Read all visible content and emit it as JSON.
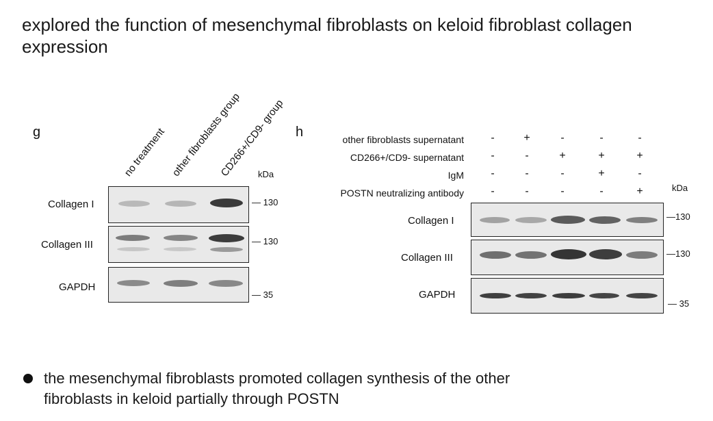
{
  "title": "explored the function of mesenchymal fibroblasts on keloid fibroblast collagen expression",
  "panel_g": {
    "letter": "g",
    "lanes": [
      "no treatment",
      "other fibroblasts group",
      "CD266+/CD9- group"
    ],
    "kda": "kDa",
    "rows": [
      {
        "label": "Collagen I",
        "marker": "130"
      },
      {
        "label": "Collagen III",
        "marker": "130"
      },
      {
        "label": "GAPDH",
        "marker": "35"
      }
    ]
  },
  "panel_h": {
    "letter": "h",
    "conditions": [
      {
        "label": "other fibroblasts supernatant",
        "signs": [
          "-",
          "+",
          "-",
          "-",
          "-"
        ]
      },
      {
        "label": "CD266+/CD9- supernatant",
        "signs": [
          "-",
          "-",
          "+",
          "+",
          "+"
        ]
      },
      {
        "label": "IgM",
        "signs": [
          "-",
          "-",
          "-",
          "+",
          "-"
        ]
      },
      {
        "label": "POSTN neutralizing antibody",
        "signs": [
          "-",
          "-",
          "-",
          "-",
          "+"
        ]
      }
    ],
    "kda": "kDa",
    "rows": [
      {
        "label": "Collagen I",
        "marker": "130"
      },
      {
        "label": "Collagen III",
        "marker": "130"
      },
      {
        "label": "GAPDH",
        "marker": "35"
      }
    ]
  },
  "bullet": "the mesenchymal fibroblasts promoted collagen synthesis of the other fibroblasts in keloid partially through POSTN"
}
